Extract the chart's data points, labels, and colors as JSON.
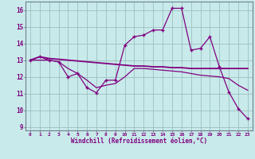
{
  "xlabel": "Windchill (Refroidissement éolien,°C)",
  "bg_color": "#c8eaea",
  "grid_color": "#9bbfbf",
  "line_color": "#800080",
  "x_values": [
    0,
    1,
    2,
    3,
    4,
    5,
    6,
    7,
    8,
    9,
    10,
    11,
    12,
    13,
    14,
    15,
    16,
    17,
    18,
    19,
    20,
    21,
    22,
    23
  ],
  "line1": [
    13.0,
    13.2,
    13.0,
    12.9,
    12.0,
    12.2,
    11.35,
    11.05,
    11.8,
    11.8,
    13.9,
    14.4,
    14.5,
    14.8,
    14.8,
    16.1,
    16.1,
    13.6,
    13.7,
    14.4,
    12.6,
    11.1,
    10.1,
    9.5
  ],
  "line2": [
    13.0,
    13.2,
    13.1,
    13.05,
    13.0,
    12.95,
    12.9,
    12.85,
    12.8,
    12.75,
    12.7,
    12.65,
    12.65,
    12.6,
    12.6,
    12.55,
    12.55,
    12.5,
    12.5,
    12.5,
    12.5,
    12.5,
    12.5,
    12.5
  ],
  "line3": [
    13.0,
    13.0,
    13.0,
    12.9,
    12.5,
    12.2,
    11.8,
    11.35,
    11.5,
    11.6,
    12.0,
    12.5,
    12.5,
    12.45,
    12.4,
    12.35,
    12.3,
    12.2,
    12.1,
    12.05,
    12.0,
    11.9,
    11.5,
    11.2
  ],
  "ylim": [
    8.8,
    16.5
  ],
  "yticks": [
    9,
    10,
    11,
    12,
    13,
    14,
    15,
    16
  ],
  "xlim": [
    -0.5,
    23.5
  ]
}
